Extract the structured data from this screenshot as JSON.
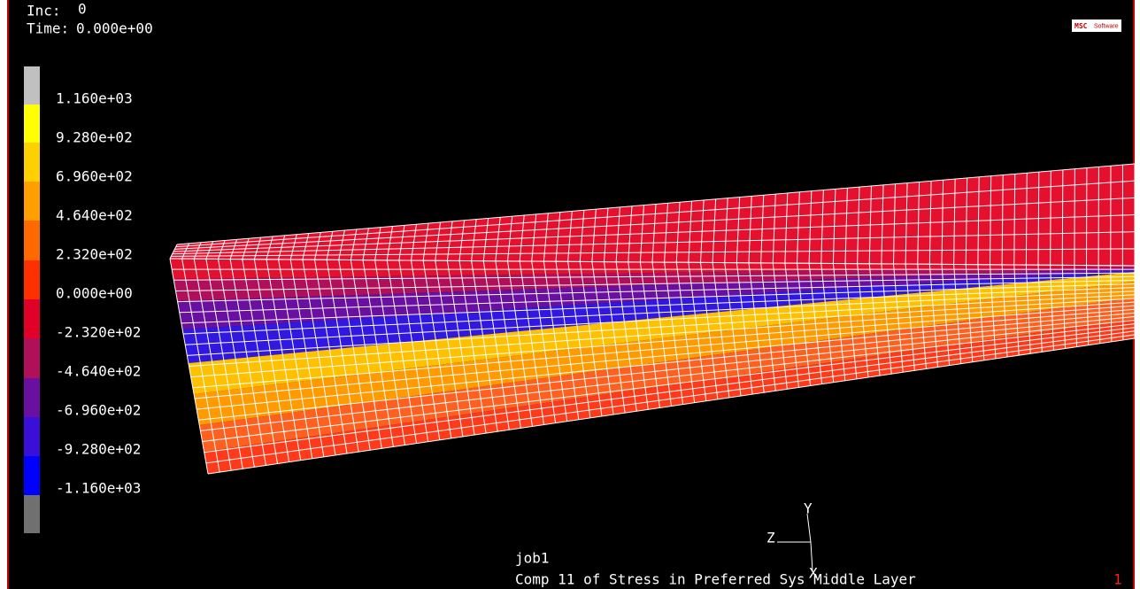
{
  "header": {
    "inc_label": "Inc:",
    "inc": "0",
    "time_label": "Time:",
    "time": "0.000e+00"
  },
  "logo": {
    "msc": "MSC",
    "software": "Software"
  },
  "legend": {
    "labels": [
      "1.160e+03",
      "9.280e+02",
      "6.960e+02",
      "4.640e+02",
      "2.320e+02",
      "0.000e+00",
      "-2.320e+02",
      "-4.640e+02",
      "-6.960e+02",
      "-9.280e+02",
      "-1.160e+03"
    ]
  },
  "axes": {
    "y": "Y",
    "z": "Z",
    "x": "X"
  },
  "footer": {
    "job": "job1",
    "description": "Comp 11 of Stress in Preferred Sys Middle Layer",
    "window": "1"
  }
}
